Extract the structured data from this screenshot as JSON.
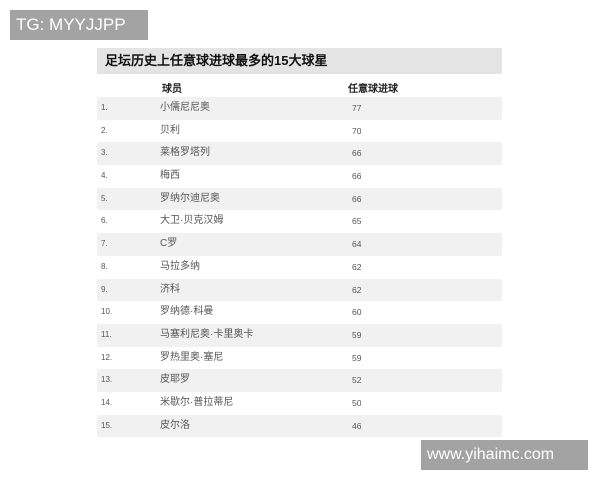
{
  "watermark_top": "TG: MYYJJPP",
  "watermark_bottom": "www.yihaimc.com",
  "title": "足坛历史上任意球进球最多的15大球星",
  "headers": {
    "player": "球员",
    "goals": "任意球进球"
  },
  "rows": [
    {
      "rank": "1.",
      "name": "小儒尼尼奥",
      "goals": "77"
    },
    {
      "rank": "2.",
      "name": "贝利",
      "goals": "70"
    },
    {
      "rank": "3.",
      "name": "莱格罗塔列",
      "goals": "66"
    },
    {
      "rank": "4.",
      "name": "梅西",
      "goals": "66"
    },
    {
      "rank": "5.",
      "name": "罗纳尔迪尼奥",
      "goals": "66"
    },
    {
      "rank": "6.",
      "name": "大卫·贝克汉姆",
      "goals": "65"
    },
    {
      "rank": "7.",
      "name": "C罗",
      "goals": "64"
    },
    {
      "rank": "8.",
      "name": "马拉多纳",
      "goals": "62"
    },
    {
      "rank": "9.",
      "name": "济科",
      "goals": "62"
    },
    {
      "rank": "10.",
      "name": "罗纳德·科曼",
      "goals": "60"
    },
    {
      "rank": "11.",
      "name": "马塞利尼奥·卡里奥卡",
      "goals": "59"
    },
    {
      "rank": "12.",
      "name": "罗热里奥·塞尼",
      "goals": "59"
    },
    {
      "rank": "13.",
      "name": "皮耶罗",
      "goals": "52"
    },
    {
      "rank": "14.",
      "name": "米歇尔·普拉蒂尼",
      "goals": "50"
    },
    {
      "rank": "15.",
      "name": "皮尔洛",
      "goals": "46"
    }
  ]
}
